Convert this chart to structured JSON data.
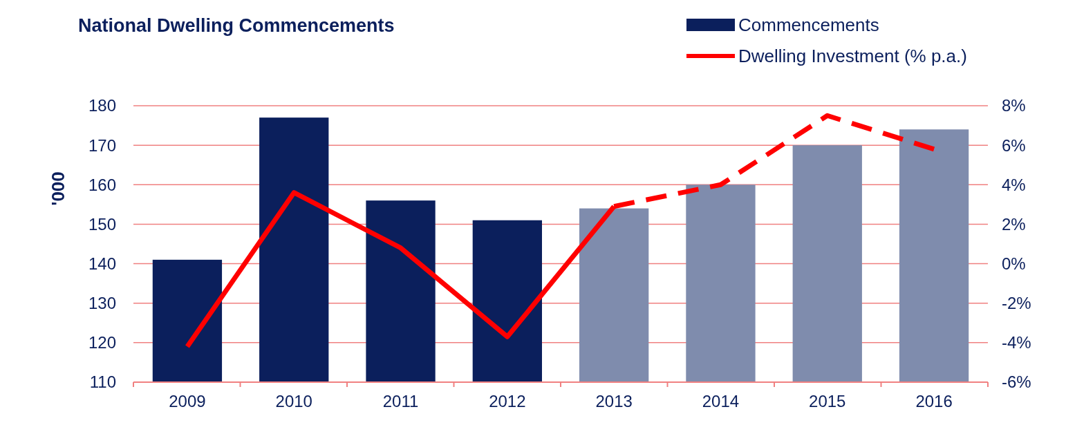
{
  "chart_data": {
    "type": "bar",
    "title": "National Dwelling Commencements",
    "ylabel": "'000",
    "categories": [
      "2009",
      "2010",
      "2011",
      "2012",
      "2013",
      "2014",
      "2015",
      "2016"
    ],
    "series": [
      {
        "name": "Commencements",
        "color": "#0b1f5c",
        "colors": [
          "#0b1f5c",
          "#0b1f5c",
          "#0b1f5c",
          "#0b1f5c",
          "#7f8cad",
          "#7f8cad",
          "#7f8cad",
          "#7f8cad"
        ],
        "values": [
          141,
          177,
          156,
          151,
          154,
          160,
          170,
          174
        ]
      },
      {
        "name": "Dwelling Investment (% p.a.)",
        "type": "line",
        "axis": "y2",
        "color": "#ff0000",
        "line_style": "solid",
        "values": [
          -4.2,
          3.6,
          0.8,
          -3.7,
          2.9,
          null,
          null,
          null
        ]
      },
      {
        "type": "line",
        "axis": "y2",
        "color": "#ff0000",
        "line_style": "dashed",
        "values": [
          null,
          null,
          null,
          null,
          2.9,
          4.0,
          7.5,
          5.8
        ]
      }
    ],
    "ylim": [
      110,
      180
    ],
    "yticks": [
      110,
      120,
      130,
      140,
      150,
      160,
      170,
      180
    ],
    "y2lim": [
      -6,
      8
    ],
    "y2ticks": [
      {
        "value": -6,
        "label": "-6%"
      },
      {
        "value": -4,
        "label": "-4%"
      },
      {
        "value": -2,
        "label": "-2%"
      },
      {
        "value": 0,
        "label": "0%"
      },
      {
        "value": 2,
        "label": "2%"
      },
      {
        "value": 4,
        "label": "4%"
      },
      {
        "value": 6,
        "label": "6%"
      },
      {
        "value": 8,
        "label": "8%"
      }
    ],
    "grid": "y",
    "legend": "top right",
    "marker": "none"
  }
}
